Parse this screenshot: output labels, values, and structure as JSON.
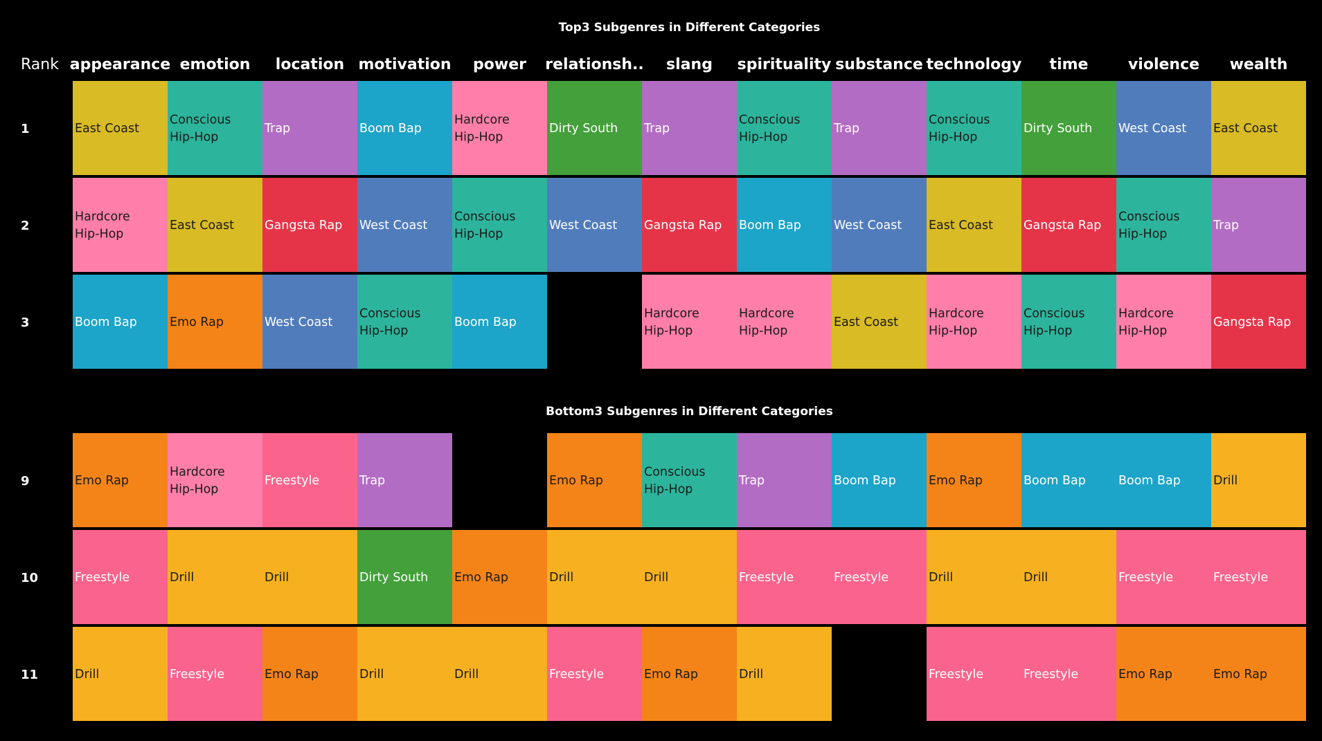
{
  "chart_data": [
    {
      "type": "table",
      "title": "Top3 Subgenres in Different Categories",
      "row_header": "Rank",
      "columns": [
        "appearance",
        "emotion",
        "location",
        "motivation",
        "power",
        "relationsh..",
        "slang",
        "spirituality",
        "substance",
        "technology",
        "time",
        "violence",
        "wealth"
      ],
      "rows": [
        {
          "rank": "1",
          "cells": [
            "East Coast",
            "Conscious Hip-Hop",
            "Trap",
            "Boom Bap",
            "Hardcore Hip-Hop",
            "Dirty South",
            "Trap",
            "Conscious Hip-Hop",
            "Trap",
            "Conscious Hip-Hop",
            "Dirty South",
            "West Coast",
            "East Coast"
          ]
        },
        {
          "rank": "2",
          "cells": [
            "Hardcore Hip-Hop",
            "East Coast",
            "Gangsta Rap",
            "West Coast",
            "Conscious Hip-Hop",
            "West Coast",
            "Gangsta Rap",
            "Boom Bap",
            "West Coast",
            "East Coast",
            "Gangsta Rap",
            "Conscious Hip-Hop",
            "Trap"
          ]
        },
        {
          "rank": "3",
          "cells": [
            "Boom Bap",
            "Emo Rap",
            "West Coast",
            "Conscious Hip-Hop",
            "Boom Bap",
            "",
            "Hardcore Hip-Hop",
            "Hardcore Hip-Hop",
            "East Coast",
            "Hardcore Hip-Hop",
            "Conscious Hip-Hop",
            "Hardcore Hip-Hop",
            "Gangsta Rap"
          ]
        }
      ]
    },
    {
      "type": "table",
      "title": "Bottom3 Subgenres in Different Categories",
      "columns": [
        "appearance",
        "emotion",
        "location",
        "motivation",
        "power",
        "relationsh..",
        "slang",
        "spirituality",
        "substance",
        "technology",
        "time",
        "violence",
        "wealth"
      ],
      "rows": [
        {
          "rank": "9",
          "cells": [
            "Emo Rap",
            "Hardcore Hip-Hop",
            "Freestyle",
            "Trap",
            "",
            "Emo Rap",
            "Conscious Hip-Hop",
            "Trap",
            "Boom Bap",
            "Emo Rap",
            "Boom Bap",
            "Boom Bap",
            "Drill"
          ]
        },
        {
          "rank": "10",
          "cells": [
            "Freestyle",
            "Drill",
            "Drill",
            "Dirty South",
            "Emo Rap",
            "Drill",
            "Drill",
            "Freestyle",
            "Freestyle",
            "Drill",
            "Drill",
            "Freestyle",
            "Freestyle"
          ]
        },
        {
          "rank": "11",
          "cells": [
            "Drill",
            "Freestyle",
            "Emo Rap",
            "Drill",
            "Drill",
            "Freestyle",
            "Emo Rap",
            "Drill",
            "",
            "Freestyle",
            "Freestyle",
            "Emo Rap",
            "Emo Rap"
          ]
        }
      ]
    }
  ],
  "genre_colors": {
    "East Coast": "#D9BB25",
    "Conscious Hip-Hop": "#2CB59C",
    "Trap": "#B36CC4",
    "Boom Bap": "#1CA4C9",
    "Hardcore Hip-Hop": "#FF7FAA",
    "Dirty South": "#43A03A",
    "West Coast": "#507CBC",
    "Gangsta Rap": "#E53448",
    "Emo Rap": "#F58418",
    "Freestyle": "#FA638C",
    "Drill": "#F7B120"
  },
  "light_text_genres": [
    "Trap",
    "Boom Bap",
    "Dirty South",
    "West Coast",
    "Gangsta Rap",
    "Freestyle"
  ],
  "colors": {
    "background": "#000000",
    "text_light": "#FFFFFF",
    "text_dark": "#1A1A1A"
  }
}
